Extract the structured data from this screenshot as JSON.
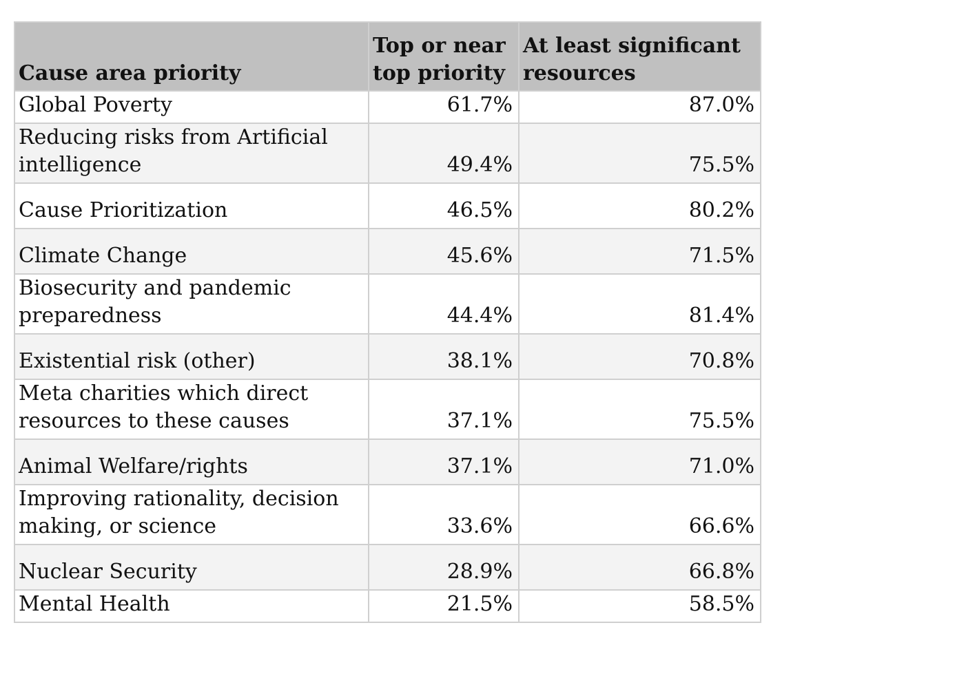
{
  "table": {
    "headers": [
      "Cause area priority",
      "Top or near top priority",
      "At least significant resources"
    ],
    "rows": [
      {
        "cause": "Global Poverty",
        "top": "61.7%",
        "significant": "87.0%"
      },
      {
        "cause": "Reducing risks from Artificial intelligence",
        "top": "49.4%",
        "significant": "75.5%"
      },
      {
        "cause": "Cause Prioritization",
        "top": "46.5%",
        "significant": "80.2%"
      },
      {
        "cause": "Climate Change",
        "top": "45.6%",
        "significant": "71.5%"
      },
      {
        "cause": "Biosecurity and pandemic preparedness",
        "top": "44.4%",
        "significant": "81.4%"
      },
      {
        "cause": "Existential risk (other)",
        "top": "38.1%",
        "significant": "70.8%"
      },
      {
        "cause": "Meta charities which direct resources to these causes",
        "top": "37.1%",
        "significant": "75.5%"
      },
      {
        "cause": "Animal Welfare/rights",
        "top": "37.1%",
        "significant": "71.0%"
      },
      {
        "cause": "Improving rationality, decision making, or science",
        "top": "33.6%",
        "significant": "66.6%"
      },
      {
        "cause": "Nuclear Security",
        "top": "28.9%",
        "significant": "66.8%"
      },
      {
        "cause": "Mental Health",
        "top": "21.5%",
        "significant": "58.5%"
      }
    ]
  }
}
